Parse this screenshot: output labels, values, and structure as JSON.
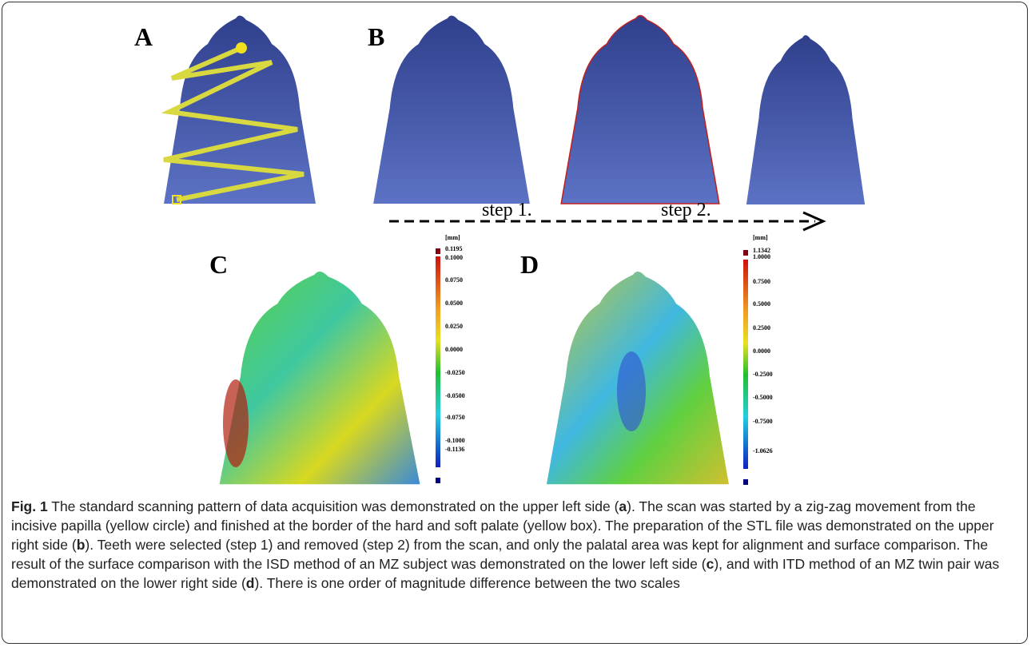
{
  "figure": {
    "panels": [
      "A",
      "B",
      "C",
      "D"
    ],
    "steps": [
      "step 1.",
      "step 2."
    ],
    "scales": [
      {
        "unit": "[mm]",
        "labels": [
          "0.1195",
          "0.1000",
          "0.0750",
          "0.0500",
          "0.0250",
          "0.0000",
          "-0.0250",
          "-0.0500",
          "-0.0750",
          "-0.1000",
          "-0.1136"
        ]
      },
      {
        "unit": "[mm]",
        "labels": [
          "1.1342",
          "1.0000",
          "0.7500",
          "0.5000",
          "0.2500",
          "0.0000",
          "-0.2500",
          "-0.5000",
          "-0.7500",
          "-1.0626"
        ]
      }
    ]
  },
  "caption": {
    "label": "Fig. 1",
    "parts": [
      " The standard scanning pattern of data acquisition was demonstrated on the upper left side (",
      "a",
      "). The scan was started by a zig-zag movement from the incisive papilla (yellow circle) and finished at the border of the hard and soft palate (yellow box). The preparation of the STL file was demonstrated on the upper right side (",
      "b",
      "). Teeth were selected (step 1) and removed (step 2) from the scan, and only the palatal area was kept for alignment and surface comparison. The result of the surface comparison with the ISD method of an MZ subject was demonstrated on the lower left side (",
      "c",
      "), and with ITD method of an MZ twin pair was demonstrated on the lower right side (",
      "d",
      "). There is one order of magnitude difference between the two scales"
    ]
  }
}
